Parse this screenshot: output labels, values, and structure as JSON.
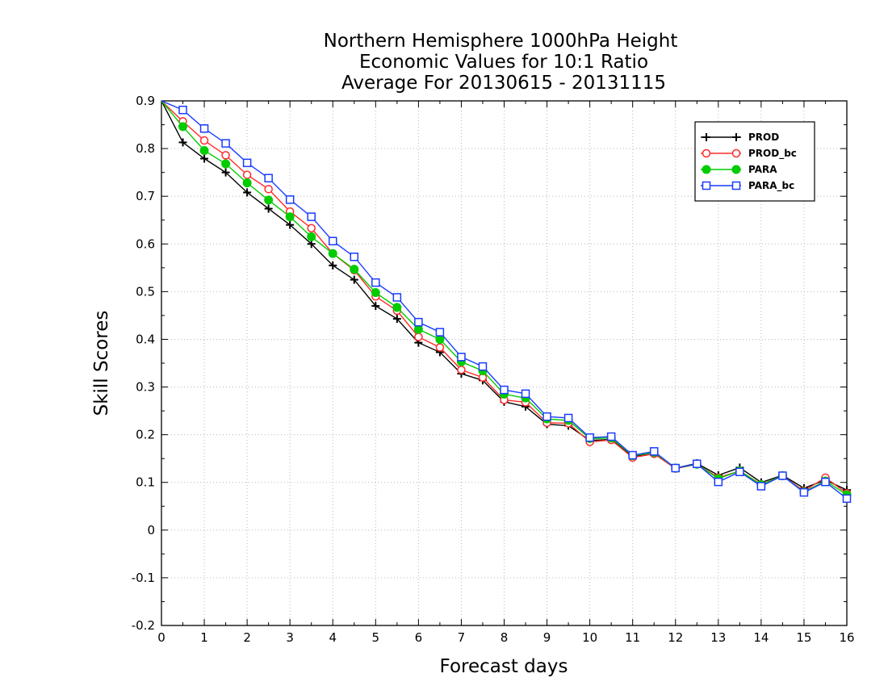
{
  "chart_data": {
    "type": "line",
    "title_lines": [
      "Northern Hemisphere 1000hPa Height",
      "Economic Values for 10:1 Ratio",
      "Average For 20130615 - 20131115"
    ],
    "xlabel": "Forecast days",
    "ylabel": "Skill Scores",
    "xlim": [
      0,
      16
    ],
    "ylim": [
      -0.2,
      0.9
    ],
    "x_ticks": [
      "0",
      "1",
      "2",
      "3",
      "4",
      "5",
      "6",
      "7",
      "8",
      "9",
      "10",
      "11",
      "12",
      "13",
      "14",
      "15",
      "16"
    ],
    "y_ticks": [
      "0.9",
      "0.8",
      "0.7",
      "0.6",
      "0.5",
      "0.4",
      "0.3",
      "0.2",
      "0.1",
      "0",
      "-0.1",
      "-0.2"
    ],
    "grid": true,
    "legend_position": "top-right",
    "x": [
      0,
      0.5,
      1,
      1.5,
      2,
      2.5,
      3,
      3.5,
      4,
      4.5,
      5,
      5.5,
      6,
      6.5,
      7,
      7.5,
      8,
      8.5,
      9,
      9.5,
      10,
      10.5,
      11,
      11.5,
      12,
      12.5,
      13,
      13.5,
      14,
      14.5,
      15,
      15.5,
      16
    ],
    "series": [
      {
        "name": "PROD",
        "color": "#000000",
        "marker": "plus",
        "values": [
          0.9,
          0.813,
          0.779,
          0.75,
          0.708,
          0.674,
          0.64,
          0.6,
          0.555,
          0.525,
          0.47,
          0.443,
          0.393,
          0.373,
          0.328,
          0.314,
          0.269,
          0.259,
          0.222,
          0.219,
          0.188,
          0.19,
          0.154,
          0.16,
          0.13,
          0.14,
          0.115,
          0.131,
          0.1,
          0.115,
          0.088,
          0.105,
          0.084
        ]
      },
      {
        "name": "PROD_bc",
        "color": "#ff2a2a",
        "marker": "open-circle",
        "values": [
          0.9,
          0.857,
          0.817,
          0.786,
          0.745,
          0.715,
          0.668,
          0.633,
          0.58,
          0.545,
          0.49,
          0.46,
          0.405,
          0.383,
          0.336,
          0.32,
          0.273,
          0.268,
          0.225,
          0.224,
          0.185,
          0.189,
          0.152,
          0.16,
          0.129,
          0.138,
          0.11,
          0.124,
          0.096,
          0.114,
          0.082,
          0.11,
          0.077
        ]
      },
      {
        "name": "PARA",
        "color": "#00cc00",
        "marker": "filled-circle",
        "values": [
          0.9,
          0.846,
          0.796,
          0.768,
          0.728,
          0.692,
          0.657,
          0.615,
          0.58,
          0.547,
          0.498,
          0.467,
          0.421,
          0.4,
          0.353,
          0.334,
          0.285,
          0.277,
          0.233,
          0.23,
          0.192,
          0.193,
          0.156,
          0.163,
          0.13,
          0.138,
          0.108,
          0.124,
          0.095,
          0.114,
          0.08,
          0.103,
          0.074
        ]
      },
      {
        "name": "PARA_bc",
        "color": "#1a3cff",
        "marker": "open-square",
        "values": [
          0.9,
          0.881,
          0.842,
          0.811,
          0.77,
          0.738,
          0.693,
          0.657,
          0.606,
          0.573,
          0.519,
          0.488,
          0.436,
          0.415,
          0.363,
          0.343,
          0.294,
          0.286,
          0.238,
          0.235,
          0.194,
          0.196,
          0.157,
          0.165,
          0.13,
          0.139,
          0.101,
          0.122,
          0.092,
          0.114,
          0.079,
          0.101,
          0.066
        ]
      }
    ]
  }
}
